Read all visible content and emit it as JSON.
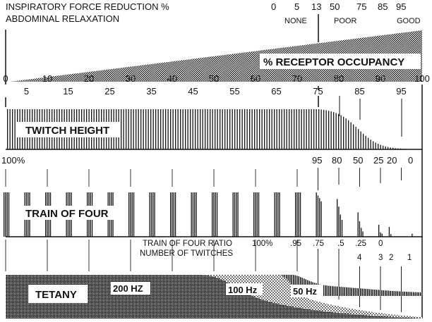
{
  "header": {
    "line1": "INSPIRATORY FORCE REDUCTION %",
    "line2": "ABDOMINAL RELAXATION",
    "inspiratory_values": [
      "0",
      "5",
      "13",
      "50",
      "75",
      "85",
      "95"
    ],
    "relaxation_levels": [
      "NONE",
      "POOR",
      "GOOD"
    ]
  },
  "receptor": {
    "label": "% RECEPTOR OCCUPANCY",
    "scale_major": [
      "0",
      "10",
      "20",
      "30",
      "40",
      "50",
      "60",
      "70",
      "80",
      "90",
      "100"
    ],
    "scale_minor": [
      "5",
      "15",
      "25",
      "35",
      "45",
      "55",
      "65",
      "75",
      "85",
      "95"
    ]
  },
  "twitch": {
    "label": "TWITCH HEIGHT",
    "heights_note_occupancy": [
      75,
      80,
      85,
      90,
      95
    ],
    "heights_fraction": [
      1.0,
      0.85,
      0.55,
      0.2,
      0.05
    ]
  },
  "tof": {
    "label": "TRAIN OF FOUR",
    "top_labels": [
      "100%",
      "95",
      "80",
      "50",
      "25",
      "20",
      "0"
    ],
    "ratio_title": "TRAIN OF FOUR RATIO",
    "ratio_values": [
      "100%",
      ".95",
      ".75",
      ".5",
      ".25",
      "0"
    ],
    "twitches_title": "NUMBER OF TWITCHES",
    "twitch_counts": [
      "4",
      "3",
      "2",
      "1"
    ]
  },
  "tetany": {
    "label": "TETANY",
    "frequencies": [
      "200 HZ",
      "100 Hz",
      "50 Hz"
    ]
  }
}
